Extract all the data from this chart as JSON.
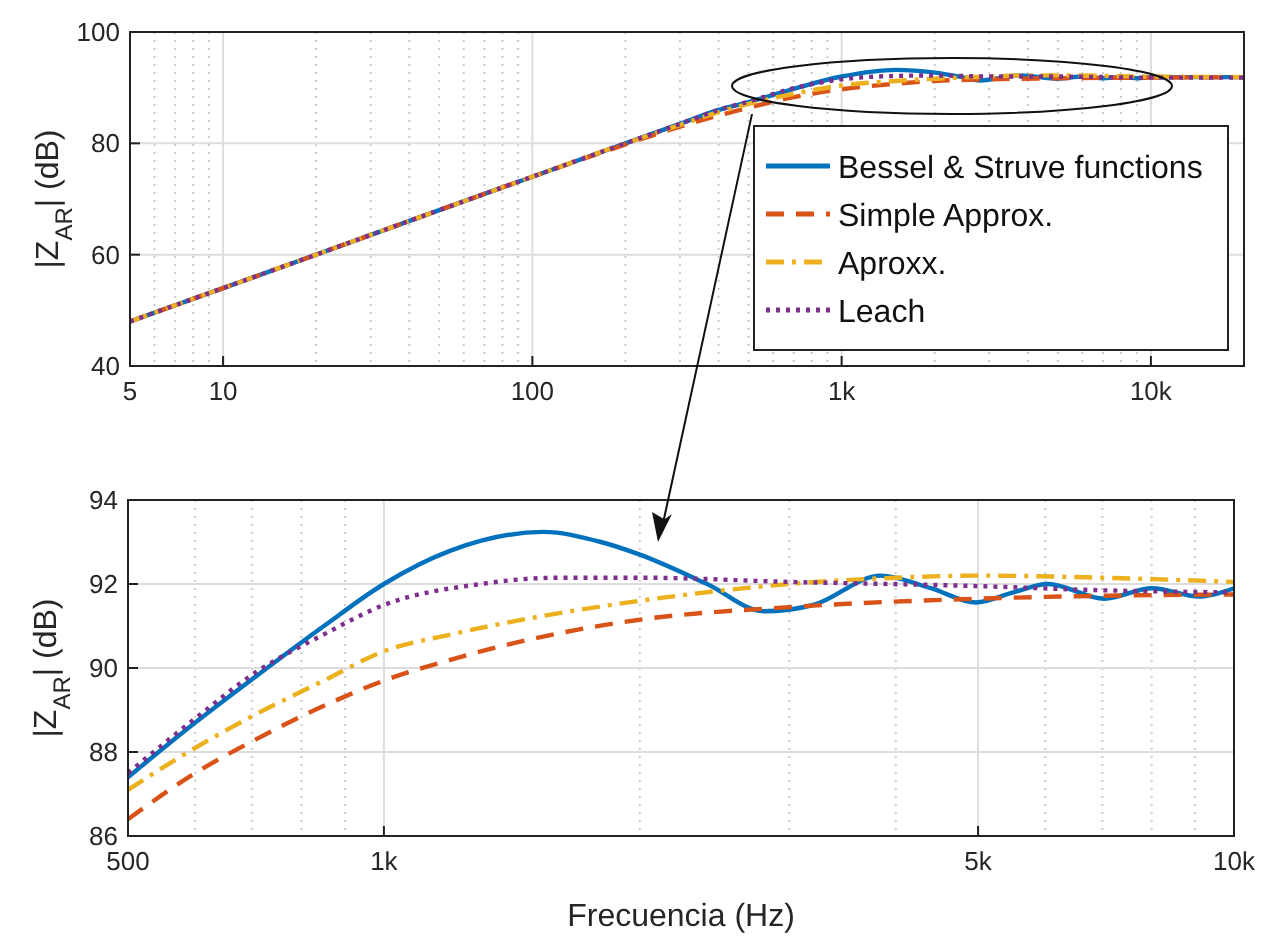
{
  "chart_data": [
    {
      "type": "line",
      "ylabel": "|Z$_{AR}$| (dB)",
      "log": "x",
      "grid": true,
      "legend": "right",
      "xlim": [
        5,
        20000
      ],
      "xticks": [
        5,
        10,
        100,
        {
          "value": 1000,
          "label": "1k"
        },
        {
          "value": 10000,
          "label": "10k"
        }
      ],
      "ylim": [
        40,
        100
      ],
      "yticks": [
        40,
        60,
        80,
        100
      ],
      "series": [
        {
          "name": "Bessel & Struve functions",
          "color": "#0072bd",
          "line_style": "solid",
          "x": [
            5,
            10,
            20,
            50,
            100,
            200,
            300,
            400,
            500,
            700,
            1000,
            1500,
            2000,
            2400,
            2800,
            3800,
            5000,
            6000,
            7000,
            8000,
            9100,
            10000,
            20000
          ],
          "values": [
            48,
            54,
            60,
            68,
            74,
            80,
            83.5,
            86,
            87.4,
            89.8,
            92,
            93.2,
            92.7,
            92,
            91.3,
            92.2,
            91.6,
            92,
            91.7,
            91.9,
            91.7,
            91.9,
            91.9
          ]
        },
        {
          "name": "Simple Approx.",
          "color": "#d95319",
          "line_style": "dashed",
          "x": [
            5,
            10,
            20,
            50,
            100,
            200,
            300,
            400,
            500,
            700,
            1000,
            1500,
            2000,
            3000,
            5000,
            10000,
            20000
          ],
          "values": [
            48,
            54,
            60,
            68,
            74,
            79.8,
            83,
            85,
            86.4,
            88.3,
            89.7,
            90.7,
            91.2,
            91.5,
            91.7,
            91.8,
            91.9
          ]
        },
        {
          "name": "Aproxx.",
          "color": "#edb120",
          "line_style": "dashdot",
          "x": [
            5,
            10,
            20,
            50,
            100,
            200,
            300,
            400,
            500,
            700,
            1000,
            1500,
            2000,
            3000,
            4000,
            5000,
            10000,
            20000
          ],
          "values": [
            48,
            54,
            60,
            68,
            74,
            80,
            83.3,
            85.6,
            87.1,
            88.9,
            90.4,
            91.2,
            91.6,
            92,
            92.2,
            92.2,
            92,
            91.9
          ]
        },
        {
          "name": "Leach",
          "color": "#7e2f8e",
          "line_style": "dotted",
          "x": [
            5,
            10,
            20,
            50,
            100,
            200,
            300,
            400,
            500,
            700,
            1000,
            1300,
            2000,
            3000,
            5000,
            10000,
            20000
          ],
          "values": [
            48,
            54,
            60,
            68,
            74,
            80,
            83.5,
            86,
            87.5,
            89.9,
            91.5,
            92,
            92.2,
            92,
            92,
            91.8,
            91.8
          ]
        }
      ]
    },
    {
      "type": "line",
      "xlabel": "Frecuencia (Hz)",
      "ylabel": "|Z$_{AR}$| (dB)",
      "log": "x",
      "grid": true,
      "xlim": [
        500,
        10000
      ],
      "xticks": [
        500,
        {
          "value": 1000,
          "label": "1k"
        },
        {
          "value": 5000,
          "label": "5k"
        },
        {
          "value": 10000,
          "label": "10k"
        }
      ],
      "ylim": [
        86,
        94
      ],
      "yticks": [
        86,
        88,
        90,
        92,
        94
      ],
      "series": [
        {
          "color": "#0072bd",
          "line_style": "solid",
          "x": [
            500,
            600,
            707,
            850,
            1000,
            1200,
            1540,
            1800,
            2000,
            2400,
            2800,
            3200,
            3840,
            4400,
            4970,
            5500,
            6040,
            7040,
            8010,
            9100,
            10000
          ],
          "values": [
            87.4,
            88.7,
            89.8,
            91,
            92,
            92.8,
            93.24,
            93,
            92.7,
            92,
            91.35,
            91.5,
            92.2,
            91.9,
            91.56,
            91.8,
            92,
            91.65,
            91.9,
            91.7,
            91.9
          ]
        },
        {
          "color": "#d95319",
          "line_style": "dashed",
          "x": [
            500,
            600,
            707,
            850,
            1000,
            1200,
            1500,
            2000,
            3000,
            5000,
            7000,
            10000
          ],
          "values": [
            86.4,
            87.5,
            88.3,
            89.1,
            89.7,
            90.2,
            90.7,
            91.15,
            91.45,
            91.65,
            91.72,
            91.75
          ]
        },
        {
          "color": "#edb120",
          "line_style": "dashdot",
          "x": [
            500,
            600,
            707,
            850,
            1000,
            1200,
            1500,
            2000,
            3000,
            4000,
            5000,
            7000,
            10000
          ],
          "values": [
            87.1,
            88.1,
            88.9,
            89.7,
            90.4,
            90.8,
            91.2,
            91.6,
            92,
            92.15,
            92.2,
            92.15,
            92.05
          ]
        },
        {
          "color": "#7e2f8e",
          "line_style": "dotted",
          "x": [
            500,
            600,
            707,
            850,
            1000,
            1300,
            1600,
            2000,
            3000,
            5000,
            7000,
            10000
          ],
          "values": [
            87.5,
            88.8,
            89.9,
            90.8,
            91.5,
            92,
            92.15,
            92.15,
            92.05,
            91.95,
            91.85,
            91.8
          ]
        }
      ]
    }
  ]
}
